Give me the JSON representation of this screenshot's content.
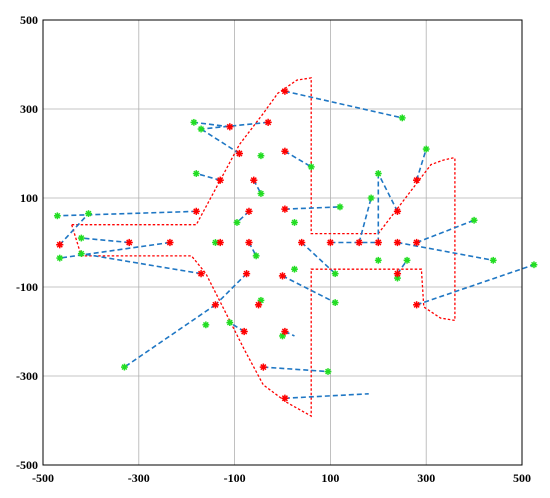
{
  "chart_data": {
    "type": "scatter",
    "title": "",
    "xlabel": "",
    "ylabel": "",
    "xlim": [
      -500,
      500
    ],
    "ylim": [
      -500,
      500
    ],
    "grid": true,
    "x_ticks": [
      -500,
      -300,
      -100,
      100,
      300,
      500
    ],
    "y_ticks": [
      -500,
      -300,
      -100,
      100,
      300,
      500
    ],
    "x_tick_labels": [
      "-500",
      "-300",
      "-100",
      "100",
      "300",
      "500"
    ],
    "y_tick_labels": [
      "-500",
      "-300",
      "-100",
      "100",
      "300",
      "500"
    ],
    "colors": {
      "outline": "#ff0000",
      "target_marker": "#ff0000",
      "source_marker": "#22dd22",
      "link": "#1f77c4",
      "grid": "#b0b0b0"
    },
    "outline": [
      [
        -440,
        40
      ],
      [
        -180,
        40
      ],
      [
        -90,
        220
      ],
      [
        -40,
        290
      ],
      [
        -10,
        335
      ],
      [
        30,
        365
      ],
      [
        60,
        370
      ],
      [
        60,
        20
      ],
      [
        200,
        20
      ],
      [
        310,
        175
      ],
      [
        335,
        185
      ],
      [
        355,
        190
      ],
      [
        360,
        190
      ],
      [
        360,
        -175
      ],
      [
        330,
        -170
      ],
      [
        295,
        -145
      ],
      [
        290,
        -60
      ],
      [
        210,
        -60
      ],
      [
        180,
        -60
      ],
      [
        170,
        -60
      ],
      [
        60,
        -60
      ],
      [
        60,
        -390
      ],
      [
        10,
        -360
      ],
      [
        -40,
        -320
      ],
      [
        -80,
        -240
      ],
      [
        -160,
        -70
      ],
      [
        -190,
        -30
      ],
      [
        -420,
        -30
      ],
      [
        -440,
        40
      ]
    ],
    "target_points": [
      [
        -465,
        -5
      ],
      [
        -320,
        0
      ],
      [
        -235,
        0
      ],
      [
        -180,
        70
      ],
      [
        -170,
        -70
      ],
      [
        -140,
        -140
      ],
      [
        -130,
        140
      ],
      [
        -130,
        0
      ],
      [
        -110,
        260
      ],
      [
        -90,
        200
      ],
      [
        -80,
        -200
      ],
      [
        -75,
        -70
      ],
      [
        -70,
        70
      ],
      [
        -70,
        0
      ],
      [
        -60,
        140
      ],
      [
        -50,
        -140
      ],
      [
        -40,
        -280
      ],
      [
        -30,
        270
      ],
      [
        0,
        -75
      ],
      [
        5,
        340
      ],
      [
        5,
        205
      ],
      [
        5,
        75
      ],
      [
        5,
        -200
      ],
      [
        5,
        -350
      ],
      [
        40,
        0
      ],
      [
        100,
        0
      ],
      [
        160,
        0
      ],
      [
        200,
        0
      ],
      [
        240,
        70
      ],
      [
        240,
        0
      ],
      [
        240,
        -70
      ],
      [
        280,
        140
      ],
      [
        280,
        0
      ],
      [
        280,
        -140
      ]
    ],
    "source_points": [
      [
        -470,
        60
      ],
      [
        -405,
        65
      ],
      [
        -420,
        10
      ],
      [
        -420,
        -25
      ],
      [
        -465,
        -35
      ],
      [
        -330,
        -280
      ],
      [
        -185,
        270
      ],
      [
        -180,
        155
      ],
      [
        -170,
        255
      ],
      [
        -160,
        -185
      ],
      [
        -140,
        0
      ],
      [
        -110,
        -180
      ],
      [
        -95,
        45
      ],
      [
        -45,
        110
      ],
      [
        -55,
        -30
      ],
      [
        -45,
        -130
      ],
      [
        -45,
        195
      ],
      [
        25,
        45
      ],
      [
        25,
        -60
      ],
      [
        0,
        -210
      ],
      [
        60,
        170
      ],
      [
        120,
        80
      ],
      [
        95,
        -290
      ],
      [
        110,
        -135
      ],
      [
        110,
        -70
      ],
      [
        185,
        100
      ],
      [
        200,
        155
      ],
      [
        200,
        -40
      ],
      [
        240,
        -80
      ],
      [
        260,
        -40
      ],
      [
        300,
        210
      ],
      [
        250,
        280
      ],
      [
        400,
        50
      ],
      [
        440,
        -40
      ],
      [
        525,
        -50
      ]
    ],
    "links": [
      [
        [
          -465,
          -5
        ],
        [
          -405,
          65
        ]
      ],
      [
        [
          -320,
          0
        ],
        [
          -420,
          10
        ]
      ],
      [
        [
          -235,
          0
        ],
        [
          -465,
          -35
        ]
      ],
      [
        [
          -180,
          70
        ],
        [
          -470,
          60
        ]
      ],
      [
        [
          -170,
          -70
        ],
        [
          -420,
          -25
        ]
      ],
      [
        [
          -140,
          -140
        ],
        [
          -330,
          -280
        ]
      ],
      [
        [
          -130,
          140
        ],
        [
          -180,
          155
        ]
      ],
      [
        [
          -130,
          0
        ],
        [
          -140,
          0
        ]
      ],
      [
        [
          -110,
          260
        ],
        [
          -185,
          270
        ]
      ],
      [
        [
          -90,
          200
        ],
        [
          -170,
          255
        ]
      ],
      [
        [
          -80,
          -200
        ],
        [
          -110,
          -180
        ]
      ],
      [
        [
          -75,
          -70
        ],
        [
          -140,
          -140
        ]
      ],
      [
        [
          -70,
          70
        ],
        [
          -95,
          45
        ]
      ],
      [
        [
          -70,
          0
        ],
        [
          -55,
          -30
        ]
      ],
      [
        [
          -60,
          140
        ],
        [
          -45,
          110
        ]
      ],
      [
        [
          -50,
          -140
        ],
        [
          -45,
          -130
        ]
      ],
      [
        [
          -40,
          -280
        ],
        [
          95,
          -290
        ]
      ],
      [
        [
          -30,
          270
        ],
        [
          -170,
          255
        ]
      ],
      [
        [
          0,
          -75
        ],
        [
          110,
          -135
        ]
      ],
      [
        [
          5,
          340
        ],
        [
          250,
          280
        ]
      ],
      [
        [
          5,
          205
        ],
        [
          60,
          170
        ]
      ],
      [
        [
          5,
          75
        ],
        [
          120,
          80
        ]
      ],
      [
        [
          5,
          -200
        ],
        [
          25,
          -210
        ]
      ],
      [
        [
          5,
          -350
        ],
        [
          180,
          -340
        ]
      ],
      [
        [
          40,
          0
        ],
        [
          110,
          -70
        ]
      ],
      [
        [
          100,
          0
        ],
        [
          200,
          0
        ]
      ],
      [
        [
          160,
          0
        ],
        [
          185,
          100
        ]
      ],
      [
        [
          200,
          0
        ],
        [
          200,
          155
        ]
      ],
      [
        [
          240,
          70
        ],
        [
          200,
          155
        ]
      ],
      [
        [
          240,
          0
        ],
        [
          440,
          -40
        ]
      ],
      [
        [
          240,
          -70
        ],
        [
          260,
          -40
        ]
      ],
      [
        [
          280,
          140
        ],
        [
          300,
          210
        ]
      ],
      [
        [
          280,
          0
        ],
        [
          400,
          50
        ]
      ],
      [
        [
          280,
          -140
        ],
        [
          525,
          -50
        ]
      ]
    ]
  }
}
